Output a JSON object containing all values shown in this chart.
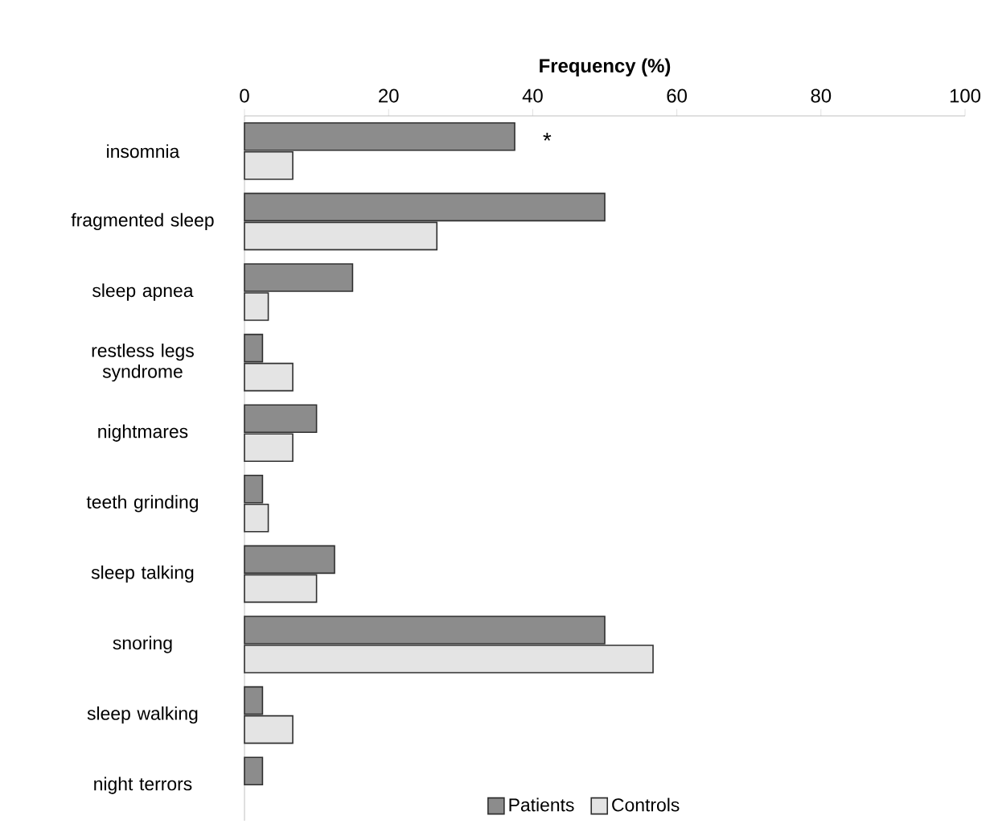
{
  "chart_data": {
    "type": "bar",
    "orientation": "horizontal",
    "xlabel": "Frequency (%)",
    "categories": [
      "insomnia",
      "fragmented sleep",
      "sleep apnea",
      "restless legs syndrome",
      "nightmares",
      "teeth grinding",
      "sleep talking",
      "snoring",
      "sleep walking",
      "night terrors"
    ],
    "series": [
      {
        "name": "Patients",
        "color": "#8c8c8c",
        "values": [
          37.5,
          50,
          15,
          2.5,
          10,
          2.5,
          12.5,
          50,
          2.5,
          2.5
        ]
      },
      {
        "name": "Controls",
        "color": "#e4e4e4",
        "values": [
          6.7,
          26.7,
          3.3,
          6.7,
          6.7,
          3.3,
          10,
          56.7,
          6.7,
          null
        ]
      }
    ],
    "xlim": [
      0,
      100
    ],
    "xticks": [
      0,
      20,
      40,
      60,
      80,
      100
    ],
    "grid": false,
    "legend": "bottom",
    "annotations": [
      "*"
    ]
  }
}
